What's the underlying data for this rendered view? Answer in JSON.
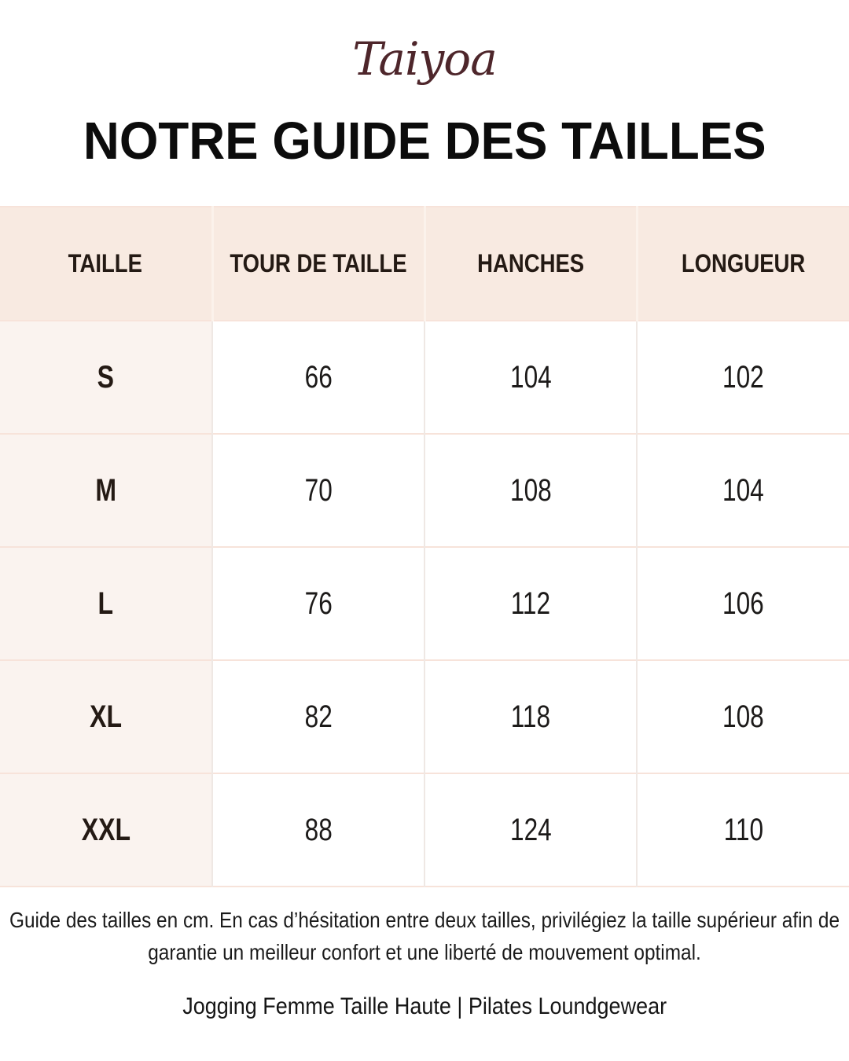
{
  "brand": {
    "logo_text": "Taiyoa",
    "logo_color": "#4E262B"
  },
  "page": {
    "title": "NOTRE GUIDE DES TAILLES",
    "background": "#FFFFFF"
  },
  "chart_data": {
    "type": "table",
    "title": "NOTRE GUIDE DES TAILLES",
    "unit": "cm",
    "columns": [
      "TAILLE",
      "TOUR DE TAILLE",
      "HANCHES",
      "LONGUEUR"
    ],
    "rows": [
      {
        "size": "S",
        "values": [
          "66",
          "104",
          "102"
        ]
      },
      {
        "size": "M",
        "values": [
          "70",
          "108",
          "104"
        ]
      },
      {
        "size": "L",
        "values": [
          "76",
          "112",
          "106"
        ]
      },
      {
        "size": "XL",
        "values": [
          "82",
          "118",
          "108"
        ]
      },
      {
        "size": "XXL",
        "values": [
          "88",
          "124",
          "110"
        ]
      }
    ]
  },
  "footer": {
    "note": "Guide des tailles en cm. En cas d’hésitation entre deux tailles, privilégiez la taille supérieur afin de garantie un meilleur confort et une liberté de mouvement optimal.",
    "product_line": "Jogging Femme Taille Haute | Pilates Loundgewear"
  },
  "colors": {
    "header_bg": "#F8EAE1",
    "size_column_bg": "#FAF3EF",
    "row_border": "#F7E3DA",
    "column_border": "#EFE8E4",
    "logo": "#4E262B",
    "text_dark": "#241A14"
  }
}
